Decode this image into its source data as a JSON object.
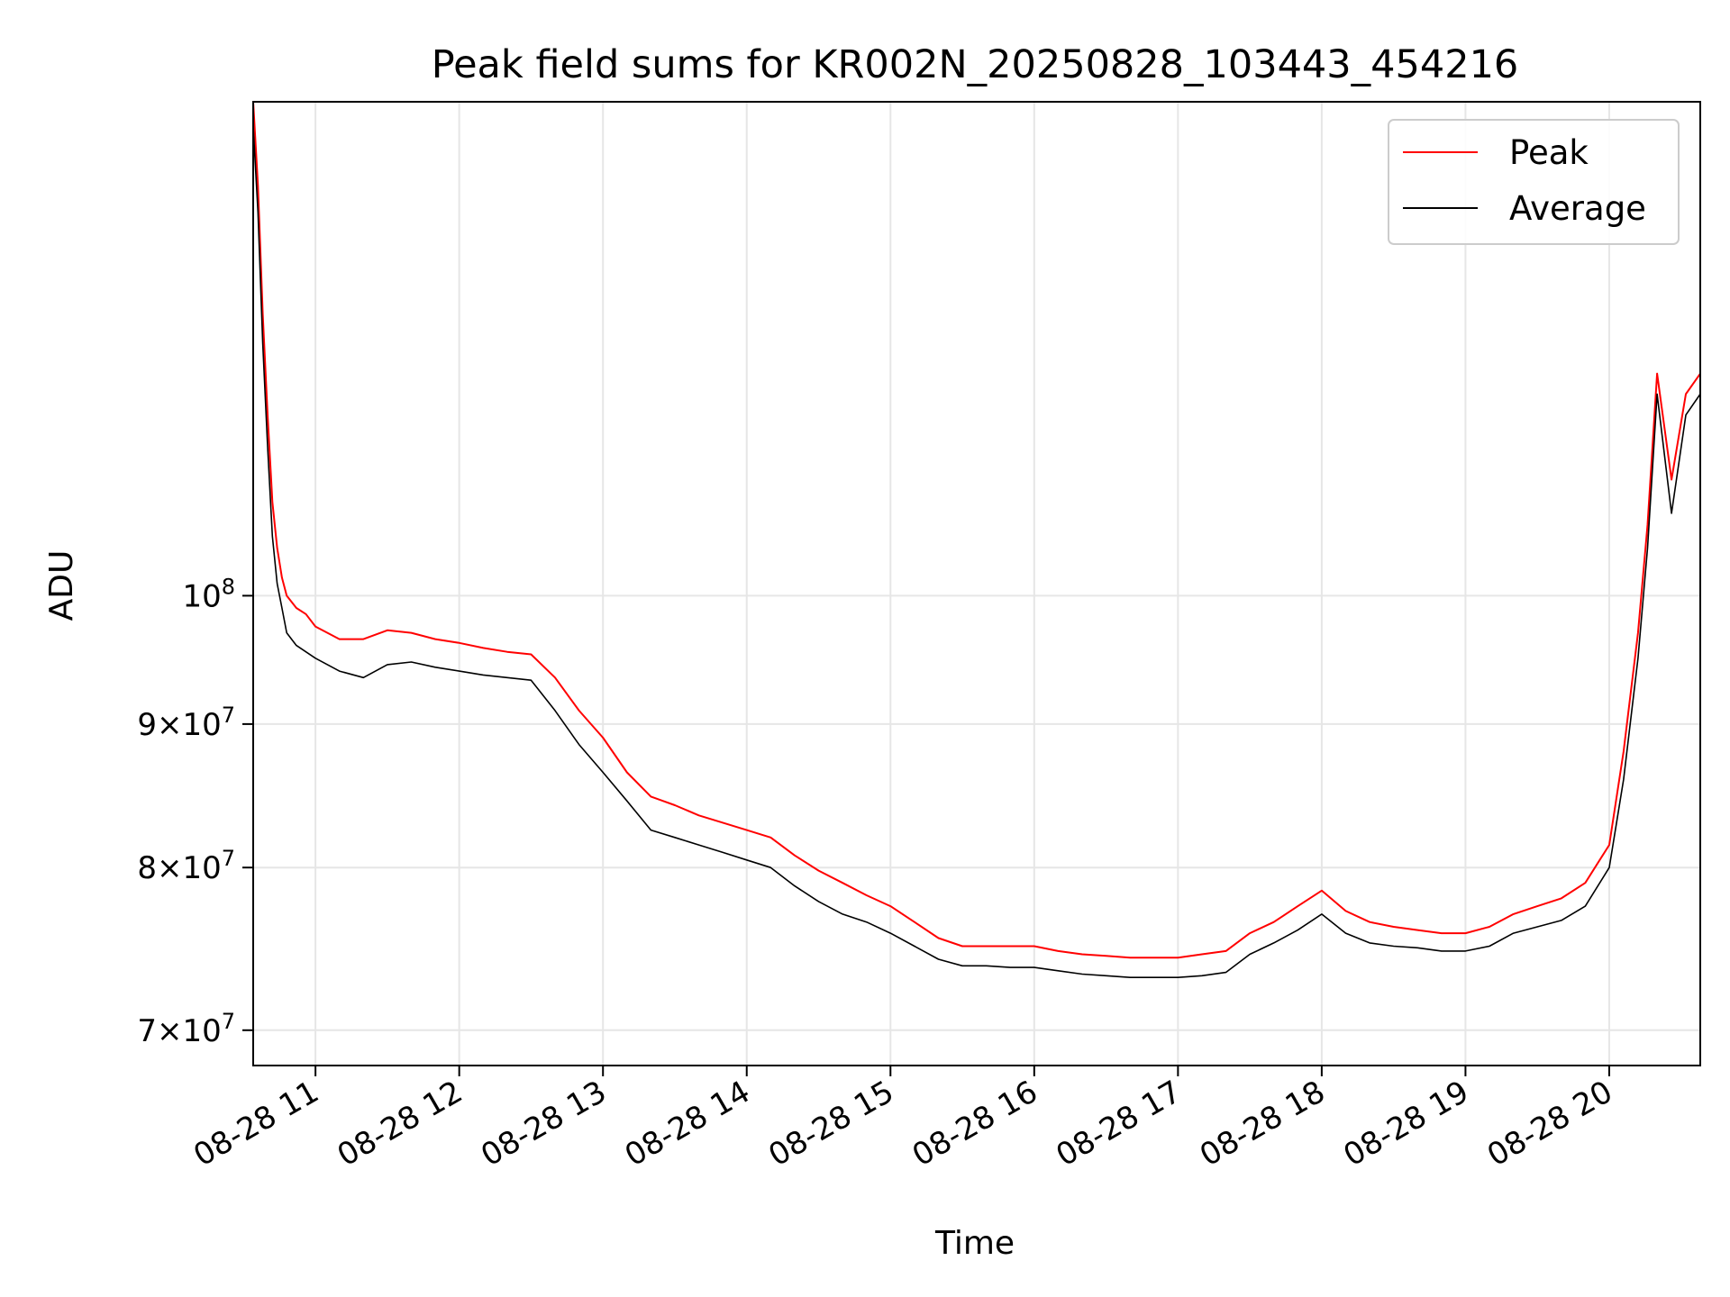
{
  "chart_data": {
    "type": "line",
    "title": "Peak field sums for KR002N_20250828_103443_454216",
    "xlabel": "Time",
    "ylabel": "ADU",
    "yscale": "log",
    "ylim": [
      68000000,
      150000000
    ],
    "xlim": [
      "2025-08-28 10:34",
      "2025-08-28 20:38"
    ],
    "x_ticks": [
      "2025-08-28 11:00",
      "2025-08-28 12:00",
      "2025-08-28 13:00",
      "2025-08-28 14:00",
      "2025-08-28 15:00",
      "2025-08-28 16:00",
      "2025-08-28 17:00",
      "2025-08-28 18:00",
      "2025-08-28 19:00",
      "2025-08-28 20:00"
    ],
    "x_tick_labels": [
      "08-28 11",
      "08-28 12",
      "08-28 13",
      "08-28 14",
      "08-28 15",
      "08-28 16",
      "08-28 17",
      "08-28 18",
      "08-28 19",
      "08-28 20"
    ],
    "y_ticks": [
      {
        "value": 70000000,
        "mantissa": "7",
        "exponent": "7"
      },
      {
        "value": 80000000,
        "mantissa": "8",
        "exponent": "7"
      },
      {
        "value": 90000000,
        "mantissa": "9",
        "exponent": "7"
      },
      {
        "value": 100000000,
        "mantissa": "",
        "exponent": "8"
      }
    ],
    "grid": true,
    "legend": "top-right",
    "series": [
      {
        "name": "Peak",
        "color": "#ff0000",
        "x": [
          "2025-08-28 10:34",
          "2025-08-28 10:36",
          "2025-08-28 10:38",
          "2025-08-28 10:40",
          "2025-08-28 10:42",
          "2025-08-28 10:44",
          "2025-08-28 10:46",
          "2025-08-28 10:48",
          "2025-08-28 10:52",
          "2025-08-28 10:56",
          "2025-08-28 11:00",
          "2025-08-28 11:10",
          "2025-08-28 11:20",
          "2025-08-28 11:30",
          "2025-08-28 11:40",
          "2025-08-28 11:50",
          "2025-08-28 12:00",
          "2025-08-28 12:10",
          "2025-08-28 12:20",
          "2025-08-28 12:30",
          "2025-08-28 12:40",
          "2025-08-28 12:50",
          "2025-08-28 13:00",
          "2025-08-28 13:10",
          "2025-08-28 13:20",
          "2025-08-28 13:30",
          "2025-08-28 13:40",
          "2025-08-28 13:50",
          "2025-08-28 14:00",
          "2025-08-28 14:10",
          "2025-08-28 14:20",
          "2025-08-28 14:30",
          "2025-08-28 14:40",
          "2025-08-28 14:50",
          "2025-08-28 15:00",
          "2025-08-28 15:10",
          "2025-08-28 15:20",
          "2025-08-28 15:30",
          "2025-08-28 15:40",
          "2025-08-28 15:50",
          "2025-08-28 16:00",
          "2025-08-28 16:10",
          "2025-08-28 16:20",
          "2025-08-28 16:30",
          "2025-08-28 16:40",
          "2025-08-28 16:50",
          "2025-08-28 17:00",
          "2025-08-28 17:10",
          "2025-08-28 17:20",
          "2025-08-28 17:30",
          "2025-08-28 17:40",
          "2025-08-28 17:50",
          "2025-08-28 18:00",
          "2025-08-28 18:10",
          "2025-08-28 18:20",
          "2025-08-28 18:30",
          "2025-08-28 18:40",
          "2025-08-28 18:50",
          "2025-08-28 19:00",
          "2025-08-28 19:10",
          "2025-08-28 19:20",
          "2025-08-28 19:30",
          "2025-08-28 19:40",
          "2025-08-28 19:50",
          "2025-08-28 20:00",
          "2025-08-28 20:06",
          "2025-08-28 20:12",
          "2025-08-28 20:16",
          "2025-08-28 20:20",
          "2025-08-28 20:26",
          "2025-08-28 20:32",
          "2025-08-28 20:38"
        ],
        "y": [
          150000000,
          140000000,
          126000000,
          116000000,
          108000000,
          104000000,
          101500000,
          100000000,
          99000000,
          98500000,
          97500000,
          96500000,
          96500000,
          97200000,
          97000000,
          96500000,
          96200000,
          95800000,
          95500000,
          95300000,
          93500000,
          91000000,
          89000000,
          86500000,
          84800000,
          84200000,
          83500000,
          83000000,
          82500000,
          82000000,
          80800000,
          79800000,
          79000000,
          78200000,
          77500000,
          76500000,
          75500000,
          75000000,
          75000000,
          75000000,
          75000000,
          74700000,
          74500000,
          74400000,
          74300000,
          74300000,
          74300000,
          74500000,
          74700000,
          75800000,
          76500000,
          77500000,
          78500000,
          77200000,
          76500000,
          76200000,
          76000000,
          75800000,
          75800000,
          76200000,
          77000000,
          77500000,
          78000000,
          79000000,
          81500000,
          88000000,
          97000000,
          106000000,
          120000000,
          110000000,
          118000000,
          120000000
        ]
      },
      {
        "name": "Average",
        "color": "#000000",
        "x": [
          "2025-08-28 10:34",
          "2025-08-28 10:36",
          "2025-08-28 10:38",
          "2025-08-28 10:40",
          "2025-08-28 10:42",
          "2025-08-28 10:44",
          "2025-08-28 10:46",
          "2025-08-28 10:48",
          "2025-08-28 10:52",
          "2025-08-28 10:56",
          "2025-08-28 11:00",
          "2025-08-28 11:10",
          "2025-08-28 11:20",
          "2025-08-28 11:30",
          "2025-08-28 11:40",
          "2025-08-28 11:50",
          "2025-08-28 12:00",
          "2025-08-28 12:10",
          "2025-08-28 12:20",
          "2025-08-28 12:30",
          "2025-08-28 12:40",
          "2025-08-28 12:50",
          "2025-08-28 13:00",
          "2025-08-28 13:10",
          "2025-08-28 13:20",
          "2025-08-28 13:30",
          "2025-08-28 13:40",
          "2025-08-28 13:50",
          "2025-08-28 14:00",
          "2025-08-28 14:10",
          "2025-08-28 14:20",
          "2025-08-28 14:30",
          "2025-08-28 14:40",
          "2025-08-28 14:50",
          "2025-08-28 15:00",
          "2025-08-28 15:10",
          "2025-08-28 15:20",
          "2025-08-28 15:30",
          "2025-08-28 15:40",
          "2025-08-28 15:50",
          "2025-08-28 16:00",
          "2025-08-28 16:10",
          "2025-08-28 16:20",
          "2025-08-28 16:30",
          "2025-08-28 16:40",
          "2025-08-28 16:50",
          "2025-08-28 17:00",
          "2025-08-28 17:10",
          "2025-08-28 17:20",
          "2025-08-28 17:30",
          "2025-08-28 17:40",
          "2025-08-28 17:50",
          "2025-08-28 18:00",
          "2025-08-28 18:10",
          "2025-08-28 18:20",
          "2025-08-28 18:30",
          "2025-08-28 18:40",
          "2025-08-28 18:50",
          "2025-08-28 19:00",
          "2025-08-28 19:10",
          "2025-08-28 19:20",
          "2025-08-28 19:30",
          "2025-08-28 19:40",
          "2025-08-28 19:50",
          "2025-08-28 20:00",
          "2025-08-28 20:06",
          "2025-08-28 20:12",
          "2025-08-28 20:16",
          "2025-08-28 20:20",
          "2025-08-28 20:26",
          "2025-08-28 20:32",
          "2025-08-28 20:38"
        ],
        "y": [
          147000000,
          137000000,
          123000000,
          113000000,
          105000000,
          101000000,
          99000000,
          97000000,
          96000000,
          95500000,
          95000000,
          94000000,
          93500000,
          94500000,
          94700000,
          94300000,
          94000000,
          93700000,
          93500000,
          93300000,
          91000000,
          88500000,
          86500000,
          84500000,
          82500000,
          82000000,
          81500000,
          81000000,
          80500000,
          80000000,
          78800000,
          77800000,
          77000000,
          76500000,
          75800000,
          75000000,
          74200000,
          73800000,
          73800000,
          73700000,
          73700000,
          73500000,
          73300000,
          73200000,
          73100000,
          73100000,
          73100000,
          73200000,
          73400000,
          74500000,
          75200000,
          76000000,
          77000000,
          75800000,
          75200000,
          75000000,
          74900000,
          74700000,
          74700000,
          75000000,
          75800000,
          76200000,
          76600000,
          77500000,
          80000000,
          86000000,
          95000000,
          104000000,
          118000000,
          107000000,
          116000000,
          118000000
        ]
      }
    ]
  }
}
